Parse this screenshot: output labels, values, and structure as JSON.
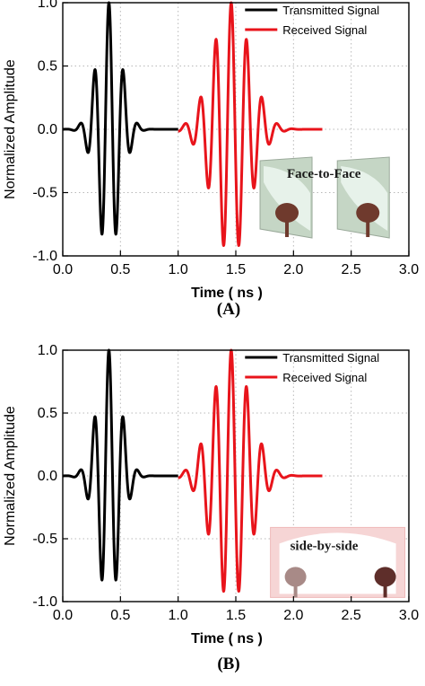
{
  "chart_data": [
    {
      "type": "line",
      "panel_label": "(A)",
      "xlabel": "Time ( ns )",
      "ylabel": "Normalized Amplitude",
      "xlim": [
        0.0,
        3.0
      ],
      "ylim": [
        -1.0,
        1.0
      ],
      "xticks": [
        "0.0",
        "0.5",
        "1.0",
        "1.5",
        "2.0",
        "2.5",
        "3.0"
      ],
      "yticks": [
        "-1.0",
        "-0.5",
        "0.0",
        "0.5",
        "1.0"
      ],
      "grid": true,
      "legend_position": "top-right",
      "inset_label": "Face-to-Face",
      "series": [
        {
          "name": "Transmitted Signal",
          "color": "#000000",
          "pulse": {
            "start": 0.0,
            "end": 1.0,
            "peak_time": 0.4,
            "peak": 1.0,
            "carrier_ghz": 8.0,
            "sigma_ns": 0.1
          },
          "points": [
            [
              0.4,
              1.0
            ],
            [
              0.34,
              -0.73
            ],
            [
              0.46,
              -0.66
            ],
            [
              0.28,
              0.26
            ],
            [
              0.53,
              0.21
            ]
          ]
        },
        {
          "name": "Received Signal",
          "color": "#e8141b",
          "pulse": {
            "start": 1.0,
            "end": 2.25,
            "peak_time": 1.46,
            "peak": 1.0,
            "carrier_ghz": 7.5,
            "sigma_ns": 0.16
          },
          "points": [
            [
              1.41,
              1.0
            ],
            [
              1.53,
              1.0
            ],
            [
              1.34,
              -0.7
            ],
            [
              1.47,
              -0.66
            ],
            [
              1.6,
              -0.63
            ],
            [
              1.27,
              0.26
            ],
            [
              1.66,
              0.21
            ]
          ]
        }
      ]
    },
    {
      "type": "line",
      "panel_label": "(B)",
      "xlabel": "Time ( ns )",
      "ylabel": "Normalized Amplitude",
      "xlim": [
        0.0,
        3.0
      ],
      "ylim": [
        -1.0,
        1.0
      ],
      "xticks": [
        "0.0",
        "0.5",
        "1.0",
        "1.5",
        "2.0",
        "2.5",
        "3.0"
      ],
      "yticks": [
        "-1.0",
        "-0.5",
        "0.0",
        "0.5",
        "1.0"
      ],
      "grid": true,
      "legend_position": "top-right",
      "inset_label": "side-by-side",
      "series": [
        {
          "name": "Transmitted Signal",
          "color": "#000000",
          "pulse": {
            "start": 0.0,
            "end": 1.0,
            "peak_time": 0.4,
            "peak": 1.0,
            "carrier_ghz": 8.0,
            "sigma_ns": 0.1
          },
          "points": [
            [
              0.4,
              1.0
            ],
            [
              0.34,
              -0.73
            ],
            [
              0.46,
              -0.66
            ],
            [
              0.28,
              0.26
            ],
            [
              0.53,
              0.21
            ]
          ]
        },
        {
          "name": "Received Signal",
          "color": "#e8141b",
          "pulse": {
            "start": 1.0,
            "end": 2.25,
            "peak_time": 1.46,
            "peak": 1.0,
            "carrier_ghz": 7.5,
            "sigma_ns": 0.16
          },
          "points": [
            [
              1.41,
              1.0
            ],
            [
              1.53,
              1.0
            ],
            [
              1.33,
              -0.74
            ],
            [
              1.46,
              -0.66
            ],
            [
              1.59,
              -0.64
            ],
            [
              1.26,
              0.26
            ],
            [
              1.66,
              0.21
            ]
          ]
        }
      ]
    }
  ]
}
